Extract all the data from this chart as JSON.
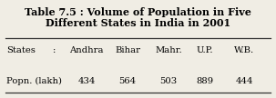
{
  "title_line1": "Table 7.5 : Volume of Population in Five",
  "title_line2": "Different States in India in 2001",
  "col_header": "States",
  "row_label": "Popn. (lakh)",
  "colon": ":",
  "states": [
    "Andhra",
    "Bihar",
    "Mahr.",
    "U.P.",
    "W.B."
  ],
  "values": [
    "434",
    "564",
    "503",
    "889",
    "444"
  ],
  "bg_color": "#f0ede4",
  "title_fontsize": 8.0,
  "body_fontsize": 7.2,
  "line_color": "#333333"
}
